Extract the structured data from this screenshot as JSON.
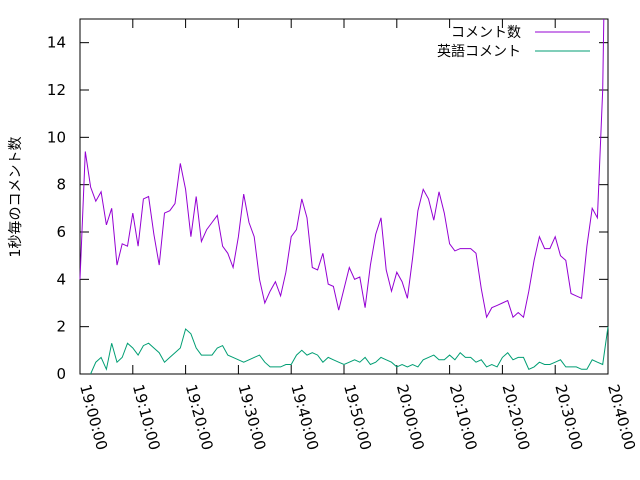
{
  "chart_data": {
    "type": "line",
    "title": "",
    "xlabel": "",
    "ylabel": "1秒毎のコメント数",
    "x_ticks": [
      "19:00:00",
      "19:10:00",
      "19:20:00",
      "19:30:00",
      "19:40:00",
      "19:50:00",
      "20:00:00",
      "20:10:00",
      "20:20:00",
      "20:30:00",
      "20:40:00"
    ],
    "y_ticks": [
      "0",
      "2",
      "4",
      "6",
      "8",
      "10",
      "12",
      "14"
    ],
    "xlim_minutes": [
      0,
      100
    ],
    "ylim": [
      0,
      15
    ],
    "grid": false,
    "legend_position": "top-right",
    "series": [
      {
        "name": "コメント数",
        "color": "#9400d3",
        "minutes": [
          0,
          1,
          2,
          3,
          4,
          5,
          6,
          7,
          8,
          9,
          10,
          11,
          12,
          13,
          14,
          15,
          16,
          17,
          18,
          19,
          20,
          21,
          22,
          23,
          24,
          25,
          26,
          27,
          28,
          29,
          30,
          31,
          32,
          33,
          34,
          35,
          36,
          37,
          38,
          39,
          40,
          41,
          42,
          43,
          44,
          45,
          46,
          47,
          48,
          49,
          50,
          51,
          52,
          53,
          54,
          55,
          56,
          57,
          58,
          59,
          60,
          61,
          62,
          63,
          64,
          65,
          66,
          67,
          68,
          69,
          70,
          71,
          72,
          73,
          74,
          75,
          76,
          77,
          78,
          79,
          80,
          81,
          82,
          83,
          84,
          85,
          86,
          87,
          88,
          89,
          90,
          91,
          92,
          93,
          94,
          95,
          96,
          97,
          98
        ],
        "values": [
          4.0,
          9.4,
          7.9,
          7.3,
          7.7,
          6.3,
          7.0,
          4.6,
          5.5,
          5.4,
          6.8,
          5.4,
          7.4,
          7.5,
          5.9,
          4.6,
          6.8,
          6.9,
          7.2,
          8.9,
          7.8,
          5.8,
          7.5,
          5.6,
          6.1,
          6.4,
          6.7,
          5.4,
          5.1,
          4.5,
          5.8,
          7.6,
          6.4,
          5.8,
          4.0,
          3.0,
          3.5,
          3.9,
          3.3,
          4.3,
          5.8,
          6.1,
          7.4,
          6.6,
          4.5,
          4.4,
          5.1,
          3.8,
          3.7,
          2.7,
          3.6,
          4.5,
          4.0,
          4.1,
          2.8,
          4.6,
          5.9,
          6.6,
          4.4,
          3.5,
          4.3,
          3.9,
          3.2,
          4.9,
          6.9,
          7.8,
          7.4,
          6.5,
          7.7,
          6.8,
          5.5,
          5.2,
          5.3,
          5.3,
          5.3,
          5.1,
          3.6,
          2.4,
          2.8,
          2.9,
          3.0,
          3.1,
          2.4,
          2.6,
          2.4,
          3.5,
          4.8,
          5.8,
          5.3,
          5.3,
          5.8,
          5.0,
          4.8,
          3.4,
          3.3,
          3.2,
          5.4,
          7.0,
          6.6
        ]
      },
      {
        "name": "英語コメント",
        "color": "#009e73",
        "minutes": [
          2,
          3,
          4,
          5,
          6,
          7,
          8,
          9,
          10,
          11,
          12,
          13,
          14,
          15,
          16,
          17,
          18,
          19,
          20,
          21,
          22,
          23,
          24,
          25,
          26,
          27,
          28,
          29,
          30,
          31,
          32,
          33,
          34,
          35,
          36,
          37,
          38,
          39,
          40,
          41,
          42,
          43,
          44,
          45,
          46,
          47,
          48,
          49,
          50,
          51,
          52,
          53,
          54,
          55,
          56,
          57,
          58,
          59,
          60,
          61,
          62,
          63,
          64,
          65,
          66,
          67,
          68,
          69,
          70,
          71,
          72,
          73,
          74,
          75,
          76,
          77,
          78,
          79,
          80,
          81,
          82,
          83,
          84,
          85,
          86,
          87,
          88,
          89,
          90,
          91,
          92,
          93,
          94,
          95,
          96,
          97,
          98,
          99
        ],
        "values": [
          0.0,
          0.5,
          0.7,
          0.2,
          1.3,
          0.5,
          0.7,
          1.3,
          1.1,
          0.8,
          1.2,
          1.3,
          1.1,
          0.9,
          0.5,
          0.7,
          0.9,
          1.1,
          1.9,
          1.7,
          1.1,
          0.8,
          0.8,
          0.8,
          1.1,
          1.2,
          0.8,
          0.7,
          0.6,
          0.5,
          0.6,
          0.7,
          0.8,
          0.5,
          0.3,
          0.3,
          0.3,
          0.4,
          0.4,
          0.8,
          1.0,
          0.8,
          0.9,
          0.8,
          0.5,
          0.7,
          0.6,
          0.5,
          0.4,
          0.5,
          0.6,
          0.5,
          0.7,
          0.4,
          0.5,
          0.7,
          0.6,
          0.5,
          0.3,
          0.4,
          0.3,
          0.4,
          0.3,
          0.6,
          0.7,
          0.8,
          0.6,
          0.6,
          0.8,
          0.6,
          0.9,
          0.7,
          0.7,
          0.5,
          0.6,
          0.3,
          0.4,
          0.3,
          0.7,
          0.9,
          0.6,
          0.7,
          0.7,
          0.2,
          0.3,
          0.5,
          0.4,
          0.4,
          0.5,
          0.6,
          0.3,
          0.3,
          0.3,
          0.2,
          0.2,
          0.6,
          0.5,
          0.4
        ]
      }
    ],
    "end_points": {
      "comments_minutes": [
        98,
        99,
        99.2
      ],
      "comments_values": [
        6.6,
        12.0,
        15
      ],
      "english_minutes": [
        99,
        100
      ],
      "english_values": [
        0.4,
        2.0
      ]
    }
  }
}
